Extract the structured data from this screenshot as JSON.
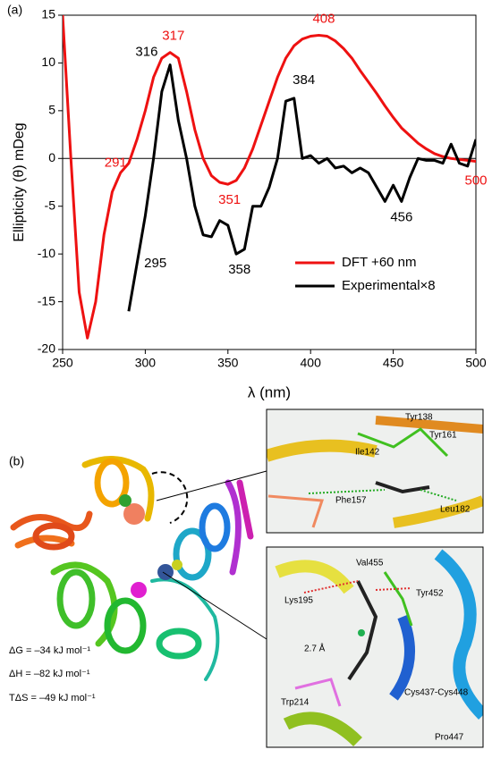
{
  "chart_data": {
    "type": "line",
    "panel_label": "(a)",
    "x_label": "λ (nm)",
    "y_label": "Ellipticity (θ) mDeg",
    "xlim": [
      250,
      500
    ],
    "xticks": [
      250,
      300,
      350,
      400,
      450,
      500
    ],
    "ylim": [
      -20,
      15
    ],
    "yticks": [
      -20,
      -15,
      -10,
      -5,
      0,
      5,
      10,
      15
    ],
    "hline": 0,
    "legend": "lower-right",
    "x": [
      250,
      255,
      260,
      265,
      270,
      275,
      280,
      285,
      290,
      295,
      300,
      305,
      310,
      315,
      320,
      325,
      330,
      335,
      340,
      345,
      350,
      355,
      360,
      365,
      370,
      375,
      380,
      385,
      390,
      395,
      400,
      405,
      410,
      415,
      420,
      425,
      430,
      435,
      440,
      445,
      450,
      455,
      460,
      465,
      470,
      475,
      480,
      485,
      490,
      495,
      500
    ],
    "series": [
      {
        "name": "DFT +60 nm",
        "color": "#ee1111",
        "values": [
          15,
          0,
          -14,
          -18.8,
          -15,
          -8,
          -3.5,
          -1.5,
          -0.5,
          2,
          5,
          8.5,
          10.5,
          11.1,
          10.5,
          7,
          3,
          0,
          -1.8,
          -2.5,
          -2.7,
          -2.3,
          -1,
          1,
          3.5,
          6,
          8.5,
          10.5,
          11.8,
          12.5,
          12.8,
          12.9,
          12.8,
          12.3,
          11.5,
          10.5,
          9.2,
          8,
          6.8,
          5.5,
          4.3,
          3.2,
          2.4,
          1.6,
          1,
          0.5,
          0.2,
          0,
          -0.1,
          -0.2,
          -0.3
        ]
      },
      {
        "name": "Experimental×8",
        "color": "#000000",
        "values": [
          null,
          null,
          null,
          null,
          null,
          null,
          null,
          null,
          -16,
          -11,
          -6,
          0,
          7,
          9.8,
          4,
          0,
          -5,
          -8,
          -8.2,
          -6.5,
          -7,
          -10,
          -9.5,
          -5,
          -5,
          -3,
          0,
          6,
          6.3,
          0,
          0.3,
          -0.5,
          0,
          -1,
          -0.8,
          -1.5,
          -1,
          -1.5,
          -3,
          -4.5,
          -2.8,
          -4.5,
          -2,
          0,
          -0.2,
          -0.2,
          -0.5,
          1.5,
          -0.5,
          -0.8,
          2
        ]
      }
    ],
    "annotations": [
      {
        "text": "317",
        "x": 317,
        "y": 11.1,
        "color": "#ee1111",
        "position": "above"
      },
      {
        "text": "408",
        "x": 408,
        "y": 12.9,
        "color": "#ee1111",
        "position": "above"
      },
      {
        "text": "291",
        "x": 291,
        "y": -0.5,
        "color": "#ee1111",
        "position": "left"
      },
      {
        "text": "351",
        "x": 351,
        "y": -2.7,
        "color": "#ee1111",
        "position": "below"
      },
      {
        "text": "500",
        "x": 500,
        "y": -0.3,
        "color": "#ee1111",
        "position": "below-left"
      },
      {
        "text": "316",
        "x": 313,
        "y": 10,
        "color": "#000000",
        "position": "above-left"
      },
      {
        "text": "384",
        "x": 387,
        "y": 6.3,
        "color": "#000000",
        "position": "above-right"
      },
      {
        "text": "295",
        "x": 295,
        "y": -11,
        "color": "#000000",
        "position": "right"
      },
      {
        "text": "358",
        "x": 357,
        "y": -10,
        "color": "#000000",
        "position": "below"
      },
      {
        "text": "456",
        "x": 455,
        "y": -4.5,
        "color": "#000000",
        "position": "below"
      }
    ]
  },
  "panel_b": {
    "panel_label": "(b)",
    "thermo": [
      "ΔG = –34 kJ mol⁻¹",
      "ΔH = –82 kJ mol⁻¹",
      "TΔS = –49 kJ mol⁻¹"
    ],
    "inset_top": [
      "Tyr138",
      "Tyr161",
      "Ile142",
      "Phe157",
      "Leu182"
    ],
    "inset_bottom": [
      "Val455",
      "Tyr452",
      "Lys195",
      "2.7 Å",
      "Trp214",
      "Cys437-Cys448",
      "Pro447"
    ]
  }
}
